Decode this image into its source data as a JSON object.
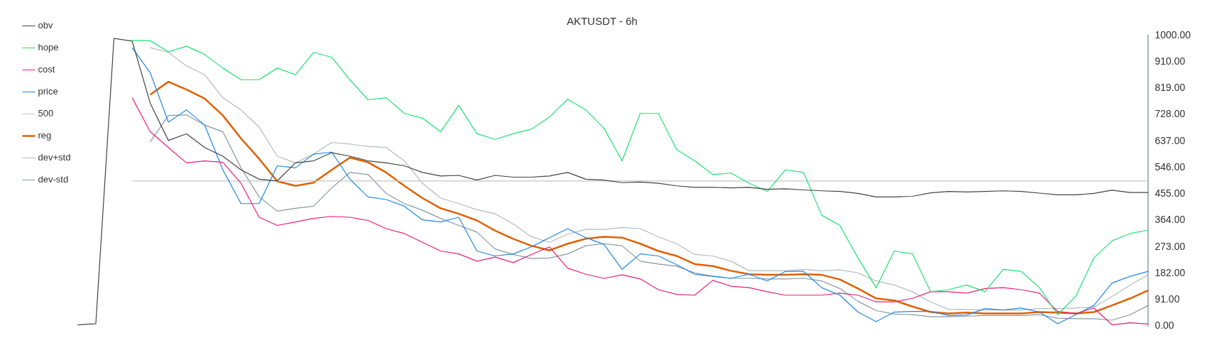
{
  "chart_data": {
    "type": "line",
    "title": "AKTUSDT - 6h",
    "categories": [
      null,
      null,
      null,
      null,
      null,
      null,
      null,
      null,
      null,
      null,
      null,
      null,
      null,
      null,
      null,
      null,
      null,
      null,
      null,
      null,
      null,
      null,
      null,
      null,
      null,
      null,
      null,
      null,
      null,
      null,
      null,
      null,
      null,
      null,
      null,
      null,
      null,
      null,
      null,
      null,
      null,
      null,
      null,
      null,
      null,
      null,
      null,
      null,
      null,
      null,
      null,
      null,
      null,
      null,
      null,
      null,
      null,
      null,
      null,
      null
    ],
    "series": [
      {
        "name": "obv",
        "color": "#444444",
        "values": [
          5,
          9,
          990,
          981,
          767,
          639,
          662,
          615,
          585,
          538,
          506,
          500,
          562,
          569,
          597,
          585,
          569,
          562,
          552,
          529,
          517,
          519,
          503,
          519,
          513,
          513,
          517,
          529,
          506,
          503,
          494,
          496,
          492,
          483,
          478,
          478,
          476,
          478,
          471,
          473,
          469,
          466,
          464,
          457,
          445,
          445,
          447,
          459,
          464,
          462,
          464,
          466,
          464,
          458,
          452,
          452,
          457,
          468,
          460,
          460
        ]
      },
      {
        "name": "hope",
        "color": "#1de272",
        "values": [
          null,
          null,
          null,
          983,
          982,
          944,
          963,
          935,
          888,
          848,
          848,
          888,
          865,
          942,
          925,
          848,
          779,
          786,
          732,
          716,
          669,
          760,
          662,
          643,
          662,
          678,
          720,
          781,
          744,
          681,
          569,
          732,
          732,
          608,
          569,
          522,
          527,
          492,
          464,
          538,
          529,
          382,
          347,
          235,
          133,
          259,
          249,
          119,
          126,
          142,
          119,
          196,
          189,
          133,
          40,
          103,
          235,
          294,
          319,
          331
        ]
      },
      {
        "name": "cost",
        "color": "#e91e7a",
        "values": [
          null,
          null,
          null,
          786,
          669,
          615,
          562,
          569,
          564,
          492,
          375,
          347,
          359,
          371,
          378,
          375,
          364,
          336,
          319,
          289,
          259,
          249,
          224,
          238,
          219,
          247,
          273,
          200,
          179,
          165,
          177,
          163,
          126,
          110,
          107,
          158,
          138,
          133,
          119,
          107,
          107,
          107,
          114,
          107,
          84,
          84,
          96,
          119,
          119,
          114,
          130,
          133,
          126,
          114,
          51,
          44,
          63,
          5,
          12,
          8
        ]
      },
      {
        "name": "price",
        "color": "#1e88e5",
        "values": [
          null,
          null,
          null,
          958,
          872,
          702,
          744,
          692,
          538,
          422,
          422,
          552,
          545,
          592,
          599,
          506,
          445,
          436,
          413,
          366,
          359,
          375,
          259,
          242,
          249,
          273,
          305,
          336,
          305,
          282,
          196,
          249,
          242,
          212,
          179,
          172,
          165,
          179,
          156,
          189,
          189,
          133,
          107,
          49,
          16,
          49,
          51,
          51,
          37,
          39,
          61,
          56,
          63,
          49,
          9,
          40,
          72,
          149,
          172,
          189
        ]
      },
      {
        "name": "500",
        "color": "#c4c4c4",
        "values": [
          null,
          null,
          null,
          500,
          500,
          500,
          500,
          500,
          500,
          500,
          500,
          500,
          500,
          500,
          500,
          500,
          500,
          500,
          500,
          500,
          500,
          500,
          500,
          500,
          500,
          500,
          500,
          500,
          500,
          500,
          500,
          500,
          500,
          500,
          500,
          500,
          500,
          500,
          500,
          500,
          500,
          500,
          500,
          500,
          500,
          500,
          500,
          500,
          500,
          500,
          500,
          500,
          500,
          500,
          500,
          500,
          500,
          500,
          500,
          500
        ]
      },
      {
        "name": "reg",
        "color": "#e06000",
        "values": [
          null,
          null,
          null,
          null,
          797,
          841,
          814,
          783,
          725,
          646,
          576,
          499,
          483,
          494,
          538,
          580,
          564,
          529,
          483,
          441,
          406,
          387,
          364,
          329,
          301,
          277,
          261,
          284,
          301,
          308,
          305,
          284,
          259,
          242,
          214,
          207,
          191,
          179,
          177,
          177,
          179,
          177,
          161,
          130,
          96,
          89,
          68,
          49,
          44,
          47,
          44,
          44,
          44,
          49,
          47,
          44,
          49,
          72,
          96,
          124
        ]
      },
      {
        "name": "dev+std",
        "color": "#b4babf",
        "values": [
          null,
          null,
          null,
          null,
          958,
          942,
          895,
          865,
          786,
          744,
          685,
          585,
          562,
          592,
          632,
          627,
          618,
          615,
          569,
          492,
          441,
          422,
          401,
          387,
          352,
          308,
          289,
          317,
          333,
          333,
          340,
          336,
          308,
          284,
          247,
          242,
          224,
          191,
          191,
          191,
          196,
          191,
          194,
          184,
          156,
          142,
          119,
          84,
          58,
          58,
          56,
          56,
          56,
          61,
          61,
          63,
          66,
          103,
          142,
          177
        ]
      },
      {
        "name": "dev-std",
        "color": "#8a979f",
        "values": [
          null,
          null,
          null,
          null,
          634,
          725,
          727,
          692,
          669,
          545,
          445,
          396,
          406,
          413,
          476,
          529,
          522,
          457,
          422,
          399,
          371,
          347,
          324,
          266,
          247,
          233,
          235,
          249,
          277,
          284,
          277,
          224,
          214,
          207,
          184,
          172,
          165,
          165,
          163,
          163,
          165,
          156,
          130,
          86,
          54,
          42,
          40,
          33,
          33,
          35,
          37,
          37,
          37,
          40,
          28,
          26,
          26,
          21,
          40,
          72
        ]
      }
    ],
    "ylim": [
      0,
      1000
    ],
    "yticks": [
      {
        "value": 0,
        "label": "0.00"
      },
      {
        "value": 91,
        "label": "91.00"
      },
      {
        "value": 182,
        "label": "182.00"
      },
      {
        "value": 273,
        "label": "273.00"
      },
      {
        "value": 364,
        "label": "364.00"
      },
      {
        "value": 455,
        "label": "455.00"
      },
      {
        "value": 546,
        "label": "546.00"
      },
      {
        "value": 637,
        "label": "637.00"
      },
      {
        "value": 728,
        "label": "728.00"
      },
      {
        "value": 819,
        "label": "819.00"
      },
      {
        "value": 910,
        "label": "910.00"
      },
      {
        "value": 1000,
        "label": "1000.00"
      }
    ],
    "grid": false,
    "legend": "top left",
    "marker": "none",
    "line_style": "solid"
  }
}
